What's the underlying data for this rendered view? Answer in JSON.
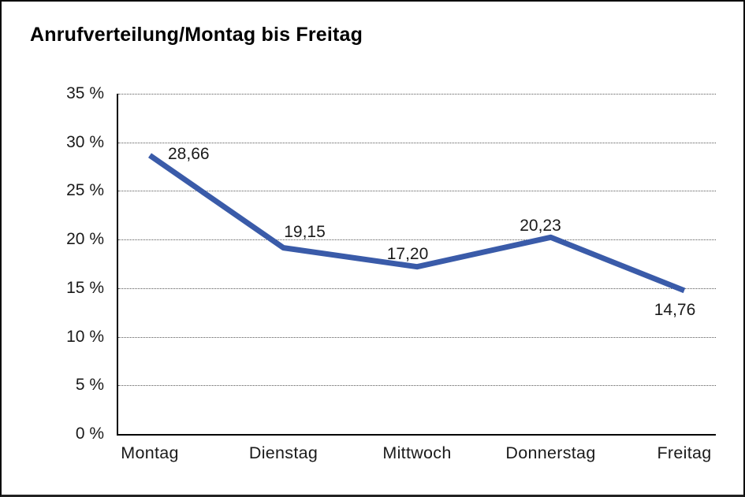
{
  "page": {
    "title": "Anrufverteilung/Montag bis Freitag"
  },
  "chart_data": {
    "type": "line",
    "title": "Anrufverteilung/Montag bis Freitag",
    "categories": [
      "Montag",
      "Dienstag",
      "Mittwoch",
      "Donnerstag",
      "Freitag"
    ],
    "values": [
      28.66,
      19.15,
      17.2,
      20.23,
      14.76
    ],
    "point_labels": [
      "28,66",
      "19,15",
      "17,20",
      "20,23",
      "14,76"
    ],
    "xlabel": "",
    "ylabel": "%",
    "ylim": [
      0,
      35
    ],
    "ytick_step": 5,
    "ytick_values": [
      35,
      30,
      25,
      20,
      15,
      10,
      5,
      0
    ],
    "ytick_labels": [
      "35 %",
      "30 %",
      "25 %",
      "20 %",
      "15 %",
      "10 %",
      "5 %",
      "0 %"
    ],
    "grid": "horizontal-dotted",
    "legend": "none",
    "line_color": "#3A5BA9",
    "axis_color": "#000000",
    "grid_color": "#595959",
    "text_color": "#1a1a1a"
  }
}
